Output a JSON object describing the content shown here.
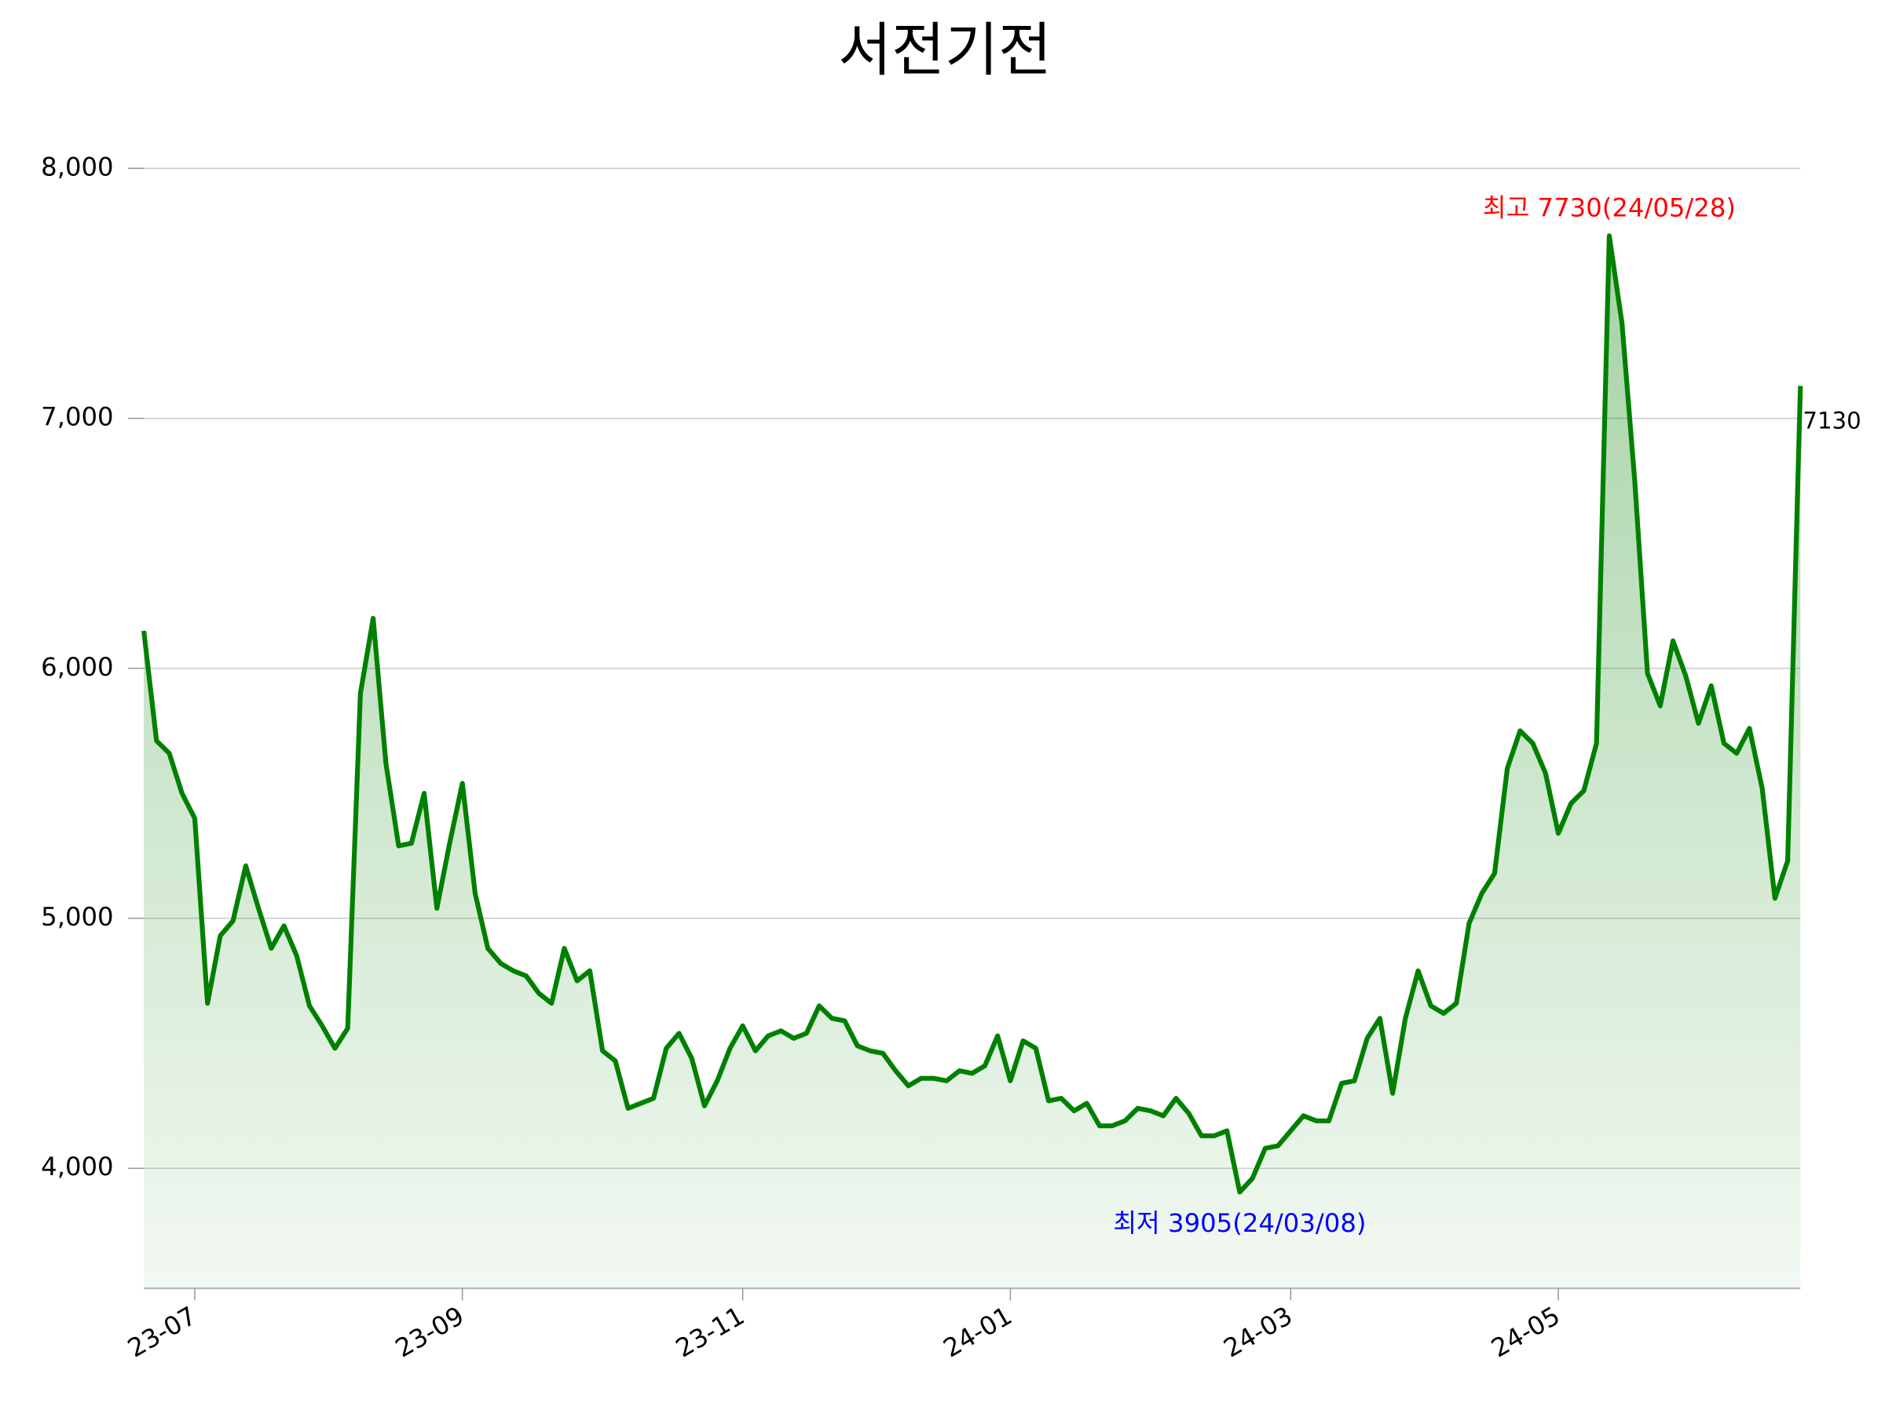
{
  "chart_data": {
    "type": "line",
    "title": "서전기전",
    "categories": [
      null,
      null,
      null,
      null,
      "23-07",
      null,
      null,
      null,
      null,
      null,
      null,
      null,
      null,
      null,
      null,
      null,
      null,
      null,
      null,
      null,
      null,
      null,
      null,
      null,
      null,
      "23-09",
      null,
      null,
      null,
      null,
      null,
      null,
      null,
      null,
      null,
      null,
      null,
      null,
      null,
      null,
      null,
      null,
      null,
      null,
      null,
      null,
      null,
      "23-11",
      null,
      null,
      null,
      null,
      null,
      null,
      null,
      null,
      null,
      null,
      null,
      null,
      null,
      null,
      null,
      null,
      null,
      null,
      null,
      null,
      "24-01",
      null,
      null,
      null,
      null,
      null,
      null,
      null,
      null,
      null,
      null,
      null,
      null,
      null,
      null,
      null,
      null,
      null,
      null,
      null,
      null,
      null,
      "24-03",
      null,
      null,
      null,
      null,
      null,
      null,
      null,
      null,
      null,
      null,
      null,
      null,
      null,
      null,
      null,
      null,
      null,
      null,
      null,
      null,
      "24-05",
      null,
      null,
      null,
      null,
      null,
      null,
      null,
      null,
      null,
      null,
      null,
      null,
      null,
      null,
      null,
      null,
      null,
      null,
      null
    ],
    "series": [
      {
        "color": "#008000",
        "values": [
          6150,
          5710,
          5660,
          5500,
          5400,
          4660,
          4930,
          4990,
          5210,
          5040,
          4880,
          4970,
          4850,
          4650,
          4570,
          4480,
          4560,
          5900,
          6200,
          5620,
          5290,
          5300,
          5500,
          5040,
          5300,
          5540,
          5100,
          4880,
          4820,
          4790,
          4770,
          4700,
          4660,
          4880,
          4750,
          4790,
          4470,
          4430,
          4240,
          4260,
          4280,
          4480,
          4540,
          4440,
          4250,
          4350,
          4480,
          4570,
          4470,
          4530,
          4550,
          4520,
          4540,
          4650,
          4600,
          4590,
          4490,
          4470,
          4460,
          4390,
          4330,
          4360,
          4360,
          4350,
          4390,
          4380,
          4410,
          4530,
          4350,
          4510,
          4480,
          4270,
          4280,
          4230,
          4260,
          4170,
          4170,
          4190,
          4240,
          4230,
          4210,
          4280,
          4220,
          4130,
          4130,
          4150,
          3905,
          3960,
          4080,
          4090,
          4150,
          4210,
          4190,
          4190,
          4340,
          4350,
          4520,
          4600,
          4300,
          4600,
          4790,
          4650,
          4620,
          4660,
          4980,
          5100,
          5180,
          5600,
          5750,
          5700,
          5580,
          5340,
          5460,
          5510,
          5700,
          7730,
          7380,
          6750,
          5980,
          5850,
          6110,
          5970,
          5780,
          5930,
          5700,
          5660,
          5760,
          5520,
          5080,
          5230,
          7130
        ]
      }
    ],
    "ylim": [
      3520,
      8190
    ],
    "yticks": [
      {
        "value": 4000,
        "label": "4,000"
      },
      {
        "value": 5000,
        "label": "5,000"
      },
      {
        "value": 6000,
        "label": "6,000"
      },
      {
        "value": 7000,
        "label": "7,000"
      },
      {
        "value": 8000,
        "label": "8,000"
      }
    ],
    "grid": true,
    "high_label": {
      "text": "최고 7730(24/05/28)",
      "color": "#ff0000"
    },
    "low_label": {
      "text": "최저 3905(24/03/08)",
      "color": "#0000ff"
    }
  }
}
